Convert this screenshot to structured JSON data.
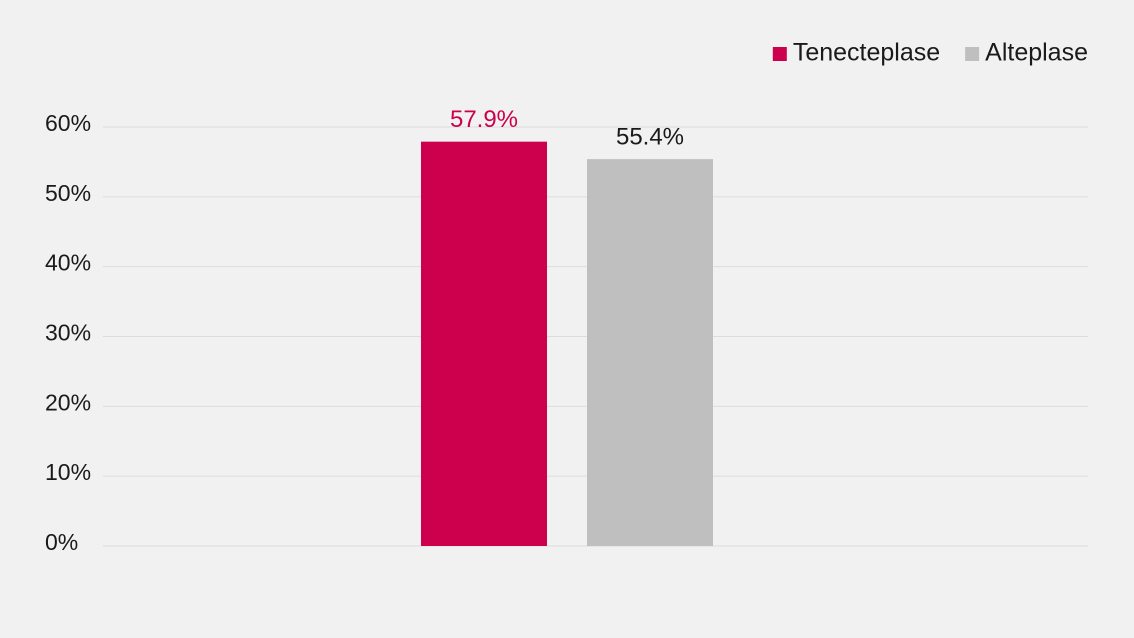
{
  "chart_data": {
    "type": "bar",
    "categories": [
      null
    ],
    "series": [
      {
        "name": "Tenecteplase",
        "color": "#cc004c",
        "label_color": "#cc004c",
        "values": [
          57.9
        ],
        "value_labels": [
          "57.9%"
        ]
      },
      {
        "name": "Alteplase",
        "color": "#bfbfbf",
        "label_color": "#1a1a1a",
        "values": [
          55.4
        ],
        "value_labels": [
          "55.4%"
        ]
      }
    ],
    "ylim": [
      0,
      60
    ],
    "yticks": [
      {
        "value": 0,
        "label": "0%"
      },
      {
        "value": 10,
        "label": "10%"
      },
      {
        "value": 20,
        "label": "20%"
      },
      {
        "value": 30,
        "label": "30%"
      },
      {
        "value": 40,
        "label": "40%"
      },
      {
        "value": 50,
        "label": "50%"
      },
      {
        "value": 60,
        "label": "60%"
      }
    ],
    "grid": true,
    "legend": "top-right"
  }
}
